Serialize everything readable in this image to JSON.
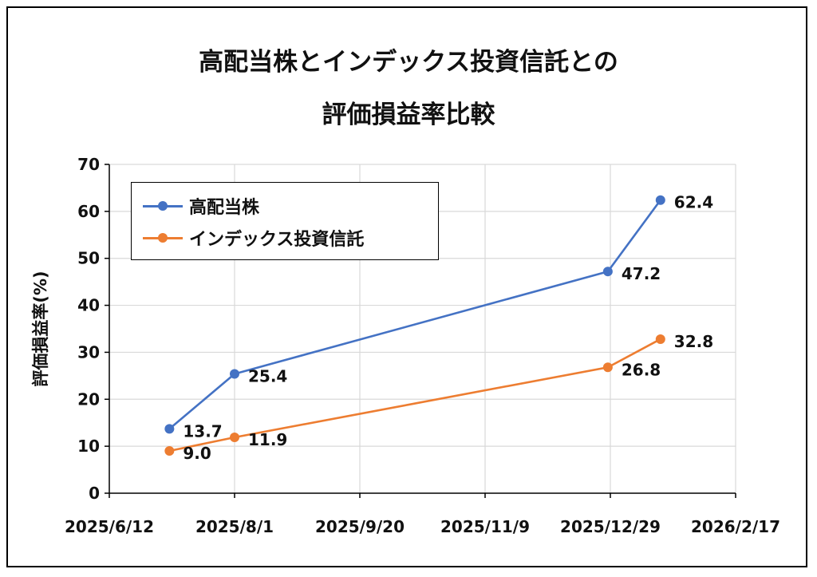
{
  "chart_data": {
    "type": "line",
    "title_line1": "高配当株とインデックス投資信託との",
    "title_line2": "評価損益率比較",
    "ylabel": "評価損益率(%)",
    "xlabel": "",
    "ylim": [
      0,
      70
    ],
    "yticks": [
      0,
      10,
      20,
      30,
      40,
      50,
      60,
      70
    ],
    "xlim": [
      "2025-06-12",
      "2026-02-17"
    ],
    "xticks": [
      "2025/6/12",
      "2025/8/1",
      "2025/9/20",
      "2025/11/9",
      "2025/12/29",
      "2026/2/17"
    ],
    "x": [
      "2025-07-06",
      "2025-08-01",
      "2025-12-28",
      "2026-01-18"
    ],
    "grid": true,
    "legend_position": "top-left",
    "series": [
      {
        "name": "高配当株",
        "color": "#4472C4",
        "values": [
          13.7,
          25.4,
          47.2,
          62.4
        ],
        "labels": [
          "13.7",
          "25.4",
          "47.2",
          "62.4"
        ]
      },
      {
        "name": "インデックス投資信託",
        "color": "#ED7D31",
        "values": [
          9.0,
          11.9,
          26.8,
          32.8
        ],
        "labels": [
          "9.0",
          "11.9",
          "26.8",
          "32.8"
        ]
      }
    ]
  }
}
